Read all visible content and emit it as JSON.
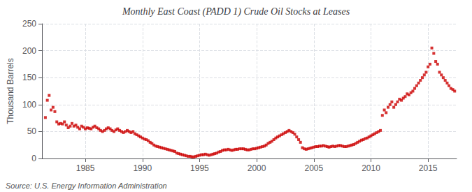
{
  "chart_data": {
    "type": "scatter",
    "title": "Monthly East Coast (PADD 1) Crude Oil Stocks at Leases",
    "ylabel": "Thousand Barrels",
    "annotations": [
      "Source: U.S. Energy Information Administration"
    ],
    "color": "#cc0000",
    "marker": "square",
    "grid": true,
    "xlim": [
      1981.2,
      2017.5
    ],
    "xticks": [
      1985,
      1990,
      1995,
      2000,
      2005,
      2010,
      2015
    ],
    "ylim": [
      0,
      250
    ],
    "yticks": [
      0,
      50,
      100,
      150,
      200,
      250
    ],
    "x": [
      1981.5,
      1981.67,
      1981.83,
      1982.0,
      1982.17,
      1982.33,
      1982.5,
      1982.67,
      1982.83,
      1983.0,
      1983.17,
      1983.33,
      1983.5,
      1983.67,
      1983.83,
      1984.0,
      1984.17,
      1984.33,
      1984.5,
      1984.67,
      1984.83,
      1985.0,
      1985.17,
      1985.33,
      1985.5,
      1985.67,
      1985.83,
      1986.0,
      1986.17,
      1986.33,
      1986.5,
      1986.67,
      1986.83,
      1987.0,
      1987.17,
      1987.33,
      1987.5,
      1987.67,
      1987.83,
      1988.0,
      1988.17,
      1988.33,
      1988.5,
      1988.67,
      1988.83,
      1989.0,
      1989.17,
      1989.33,
      1989.5,
      1989.67,
      1989.83,
      1990.0,
      1990.17,
      1990.33,
      1990.5,
      1990.67,
      1990.83,
      1991.0,
      1991.17,
      1991.33,
      1991.5,
      1991.67,
      1991.83,
      1992.0,
      1992.17,
      1992.33,
      1992.5,
      1992.67,
      1992.83,
      1993.0,
      1993.17,
      1993.33,
      1993.5,
      1993.67,
      1993.83,
      1994.0,
      1994.17,
      1994.33,
      1994.5,
      1994.67,
      1994.83,
      1995.0,
      1995.17,
      1995.33,
      1995.5,
      1995.67,
      1995.83,
      1996.0,
      1996.17,
      1996.33,
      1996.5,
      1996.67,
      1996.83,
      1997.0,
      1997.17,
      1997.33,
      1997.5,
      1997.67,
      1997.83,
      1998.0,
      1998.17,
      1998.33,
      1998.5,
      1998.67,
      1998.83,
      1999.0,
      1999.17,
      1999.33,
      1999.5,
      1999.67,
      1999.83,
      2000.0,
      2000.17,
      2000.33,
      2000.5,
      2000.67,
      2000.83,
      2001.0,
      2001.17,
      2001.33,
      2001.5,
      2001.67,
      2001.83,
      2002.0,
      2002.17,
      2002.33,
      2002.5,
      2002.67,
      2002.83,
      2003.0,
      2003.17,
      2003.33,
      2003.5,
      2003.67,
      2003.83,
      2004.0,
      2004.17,
      2004.33,
      2004.5,
      2004.67,
      2004.83,
      2005.0,
      2005.17,
      2005.33,
      2005.5,
      2005.67,
      2005.83,
      2006.0,
      2006.17,
      2006.33,
      2006.5,
      2006.67,
      2006.83,
      2007.0,
      2007.17,
      2007.33,
      2007.5,
      2007.67,
      2007.83,
      2008.0,
      2008.17,
      2008.33,
      2008.5,
      2008.67,
      2008.83,
      2009.0,
      2009.17,
      2009.33,
      2009.5,
      2009.67,
      2009.83,
      2010.0,
      2010.17,
      2010.33,
      2010.5,
      2010.67,
      2010.83,
      2011.0,
      2011.17,
      2011.33,
      2011.5,
      2011.67,
      2011.83,
      2012.0,
      2012.17,
      2012.33,
      2012.5,
      2012.67,
      2012.83,
      2013.0,
      2013.17,
      2013.33,
      2013.5,
      2013.67,
      2013.83,
      2014.0,
      2014.17,
      2014.33,
      2014.5,
      2014.67,
      2014.83,
      2015.0,
      2015.17,
      2015.33,
      2015.5,
      2015.67,
      2015.83,
      2016.0,
      2016.17,
      2016.33,
      2016.5,
      2016.67,
      2016.83,
      2017.0,
      2017.17,
      2017.33
    ],
    "values": [
      76,
      108,
      117,
      90,
      95,
      87,
      68,
      64,
      65,
      64,
      68,
      62,
      57,
      60,
      65,
      60,
      62,
      58,
      55,
      60,
      58,
      55,
      57,
      56,
      55,
      58,
      60,
      57,
      55,
      52,
      50,
      52,
      55,
      57,
      55,
      52,
      50,
      53,
      55,
      52,
      50,
      48,
      50,
      52,
      50,
      48,
      50,
      46,
      44,
      42,
      40,
      38,
      36,
      35,
      33,
      30,
      28,
      25,
      23,
      22,
      21,
      20,
      19,
      18,
      17,
      16,
      15,
      14,
      13,
      10,
      9,
      8,
      7,
      6,
      5,
      4,
      4,
      3,
      3,
      4,
      5,
      6,
      7,
      7,
      8,
      7,
      6,
      7,
      8,
      9,
      10,
      12,
      13,
      15,
      16,
      16,
      17,
      16,
      15,
      16,
      17,
      17,
      18,
      18,
      18,
      17,
      16,
      16,
      17,
      18,
      18,
      19,
      20,
      21,
      22,
      23,
      25,
      28,
      30,
      32,
      35,
      38,
      40,
      42,
      44,
      46,
      48,
      50,
      52,
      50,
      48,
      45,
      40,
      35,
      30,
      20,
      18,
      17,
      18,
      19,
      20,
      21,
      22,
      22,
      23,
      23,
      24,
      23,
      22,
      21,
      22,
      23,
      22,
      23,
      24,
      24,
      23,
      22,
      22,
      23,
      24,
      25,
      26,
      28,
      30,
      32,
      34,
      35,
      37,
      38,
      40,
      42,
      44,
      46,
      48,
      50,
      52,
      80,
      90,
      85,
      95,
      100,
      105,
      95,
      100,
      105,
      110,
      108,
      112,
      115,
      120,
      118,
      122,
      125,
      130,
      135,
      140,
      145,
      150,
      155,
      160,
      170,
      175,
      205,
      195,
      180,
      175,
      160,
      155,
      150,
      145,
      140,
      135,
      130,
      128,
      125
    ]
  }
}
